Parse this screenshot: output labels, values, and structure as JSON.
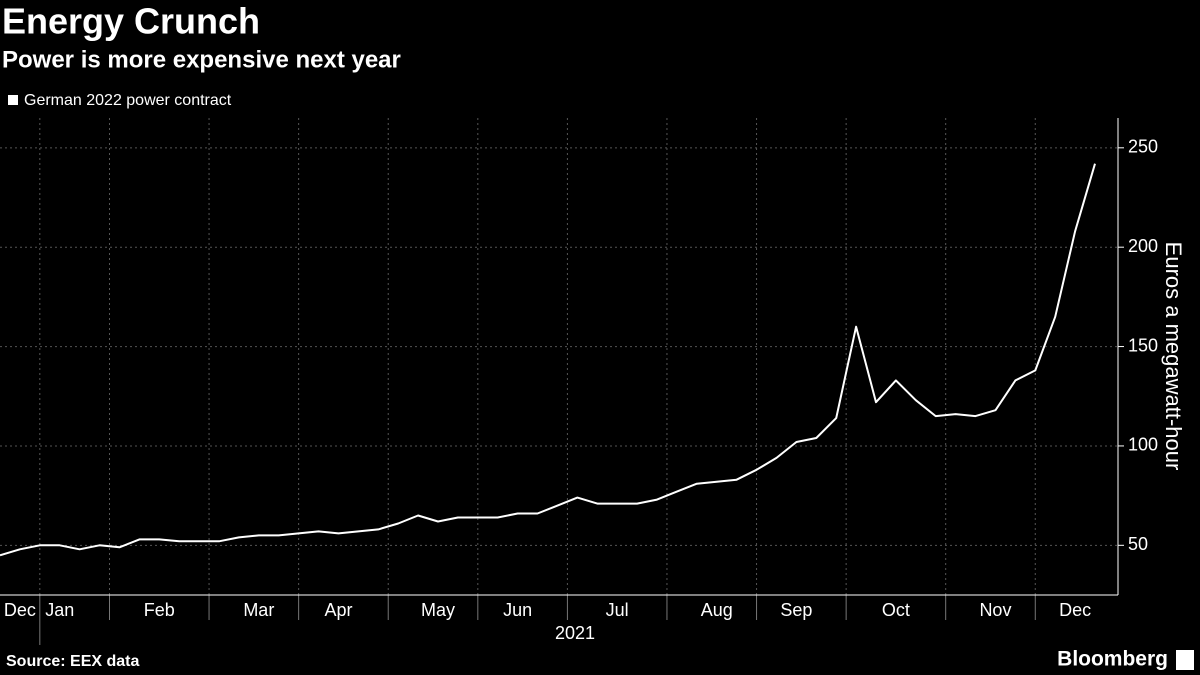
{
  "chart_data": {
    "type": "line",
    "title": "Energy Crunch",
    "subtitle": "Power is more expensive next year",
    "ylabel": "Euros a megawatt-hour",
    "xlabel": "2021",
    "source": "Source: EEX data",
    "brand": "Bloomberg",
    "categories": [
      null,
      "Dec",
      null,
      "Jan",
      null,
      null,
      null,
      null,
      "Feb",
      null,
      null,
      null,
      null,
      "Mar",
      null,
      null,
      null,
      "Apr",
      null,
      null,
      null,
      null,
      "May",
      null,
      null,
      null,
      "Jun",
      null,
      null,
      null,
      null,
      "Jul",
      null,
      null,
      null,
      null,
      "Aug",
      null,
      null,
      null,
      "Sep",
      null,
      null,
      null,
      null,
      "Oct",
      null,
      null,
      null,
      null,
      "Nov",
      null,
      null,
      null,
      "Dec",
      null
    ],
    "series": [
      {
        "name": "German 2022 power contract",
        "color": "#ffffff",
        "values": [
          45,
          48,
          50,
          50,
          48,
          50,
          49,
          53,
          53,
          52,
          52,
          52,
          54,
          55,
          55,
          56,
          57,
          56,
          57,
          58,
          61,
          65,
          62,
          64,
          64,
          64,
          66,
          66,
          70,
          74,
          71,
          71,
          71,
          73,
          77,
          81,
          82,
          83,
          88,
          94,
          102,
          104,
          114,
          160,
          122,
          133,
          123,
          115,
          116,
          115,
          118,
          133,
          138,
          165,
          208,
          242
        ]
      }
    ],
    "ylim": [
      25,
      265
    ],
    "yticks": [
      50,
      100,
      150,
      200,
      250
    ],
    "grid": true,
    "legend": "top-left"
  }
}
